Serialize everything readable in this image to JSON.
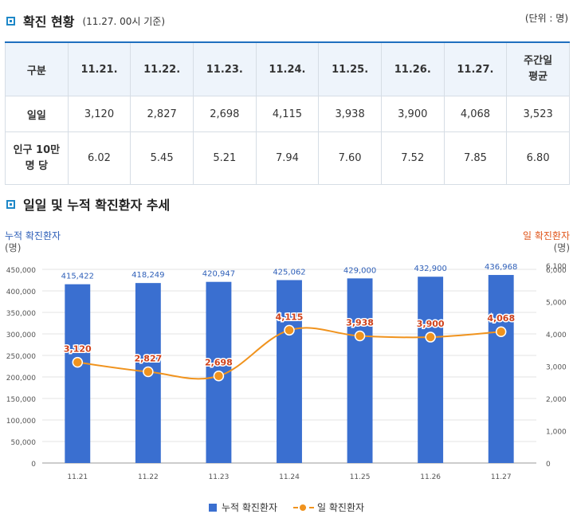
{
  "section1": {
    "title": "확진 현황",
    "subtitle": "(11.27. 00시 기준)",
    "unit": "(단위 : 명)"
  },
  "table": {
    "header": [
      "구분",
      "11.21.",
      "11.22.",
      "11.23.",
      "11.24.",
      "11.25.",
      "11.26.",
      "11.27.",
      "주간일 평균"
    ],
    "header_avg_lines": [
      "주간일",
      "평균"
    ],
    "rows": [
      {
        "label_lines": [
          "일일"
        ],
        "values": [
          "3,120",
          "2,827",
          "2,698",
          "4,115",
          "3,938",
          "3,900",
          "4,068",
          "3,523"
        ]
      },
      {
        "label_lines": [
          "인구 10만",
          "명 당"
        ],
        "values": [
          "6.02",
          "5.45",
          "5.21",
          "7.94",
          "7.60",
          "7.52",
          "7.85",
          "6.80"
        ]
      }
    ]
  },
  "section2": {
    "title": "일일 및 누적 확진환자 추세"
  },
  "axis_titles": {
    "left": "누적 확진환자",
    "left_unit": "(명)",
    "right": "일 확진환자",
    "right_unit": "(명)"
  },
  "legend": {
    "bar": "누적 확진환자",
    "line": "일 확진환자"
  },
  "colors": {
    "bar": "#3a6fd0",
    "line": "#f0931e",
    "point_label": "#d0421b",
    "bar_label": "#2e5fb8",
    "header_bg": "#eef4fb",
    "accent": "#1e88c8"
  },
  "chart_data": {
    "type": "bar",
    "categories": [
      "11.21",
      "11.22",
      "11.23",
      "11.24",
      "11.25",
      "11.26",
      "11.27"
    ],
    "series": [
      {
        "name": "누적 확진환자",
        "type": "bar",
        "axis": "left",
        "values": [
          415422,
          418249,
          420947,
          425062,
          429000,
          432900,
          436968
        ],
        "labels": [
          "415,422",
          "418,249",
          "420,947",
          "425,062",
          "429,000",
          "432,900",
          "436,968"
        ]
      },
      {
        "name": "일 확진환자",
        "type": "line",
        "axis": "right",
        "values": [
          3120,
          2827,
          2698,
          4115,
          3938,
          3900,
          4068
        ],
        "labels": [
          "3,120",
          "2,827",
          "2,698",
          "4,115",
          "3,938",
          "3,900",
          "4,068"
        ]
      }
    ],
    "left_axis": {
      "ylim": [
        0,
        450000
      ],
      "ticks": [
        "0",
        "50,000",
        "100,000",
        "150,000",
        "200,000",
        "250,000",
        "300,000",
        "350,000",
        "400,000",
        "450,000"
      ]
    },
    "right_axis": {
      "ylim": [
        0,
        6000
      ],
      "ticks": [
        "0",
        "1,000",
        "2,000",
        "3,000",
        "4,000",
        "5,000",
        "6,000"
      ],
      "extra_top_tick": "6,100"
    },
    "grid": "horizontal",
    "legend_position": "bottom"
  }
}
